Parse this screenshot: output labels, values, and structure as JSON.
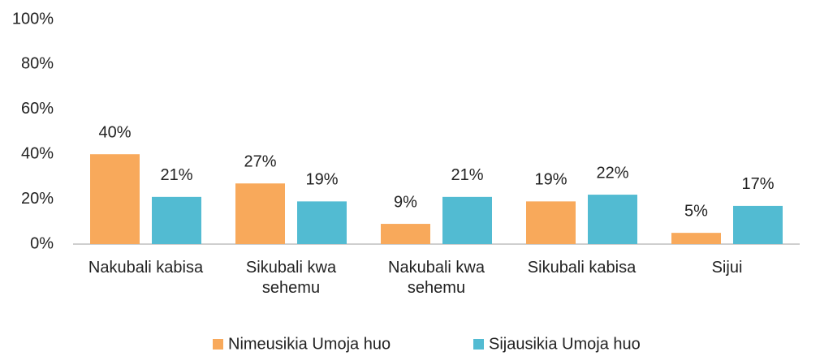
{
  "chart_data": {
    "type": "bar",
    "categories": [
      "Nakubali kabisa",
      "Sikubali kwa sehemu",
      "Nakubali kwa sehemu",
      "Sikubali kabisa",
      "Sijui"
    ],
    "series": [
      {
        "name": "Nimeusikia Umoja huo",
        "color": "#f8a95b",
        "values": [
          40,
          27,
          9,
          19,
          5
        ],
        "value_labels": [
          "40%",
          "27%",
          "9%",
          "19%",
          "5%"
        ]
      },
      {
        "name": "Sijausikia Umoja huo",
        "color": "#52bbd2",
        "values": [
          21,
          19,
          21,
          22,
          17
        ],
        "value_labels": [
          "21%",
          "19%",
          "21%",
          "22%",
          "17%"
        ]
      }
    ],
    "ylim": [
      0,
      100
    ],
    "yticks": [
      {
        "value": 0,
        "label": "0%"
      },
      {
        "value": 20,
        "label": "20%"
      },
      {
        "value": 40,
        "label": "40%"
      },
      {
        "value": 60,
        "label": "60%"
      },
      {
        "value": 80,
        "label": "80%"
      },
      {
        "value": 100,
        "label": "100%"
      }
    ],
    "grid": false,
    "legend": "bottom"
  }
}
